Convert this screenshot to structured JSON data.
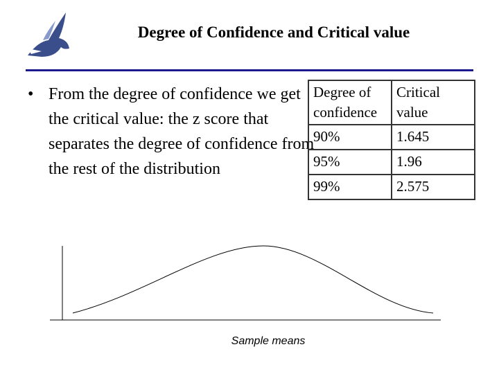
{
  "header": {
    "title": "Degree of Confidence and Critical value"
  },
  "bullets": [
    "From the degree of confidence we get the critical value: the z score that separates the degree of confidence from the rest of the distribution"
  ],
  "table": {
    "columns": [
      "Degree of confidence",
      "Critical value"
    ],
    "rows": [
      [
        "90%",
        "1.645"
      ],
      [
        "95%",
        "1.96"
      ],
      [
        "99%",
        "2.575"
      ]
    ]
  },
  "diagram": {
    "x_label": "Sample means"
  }
}
